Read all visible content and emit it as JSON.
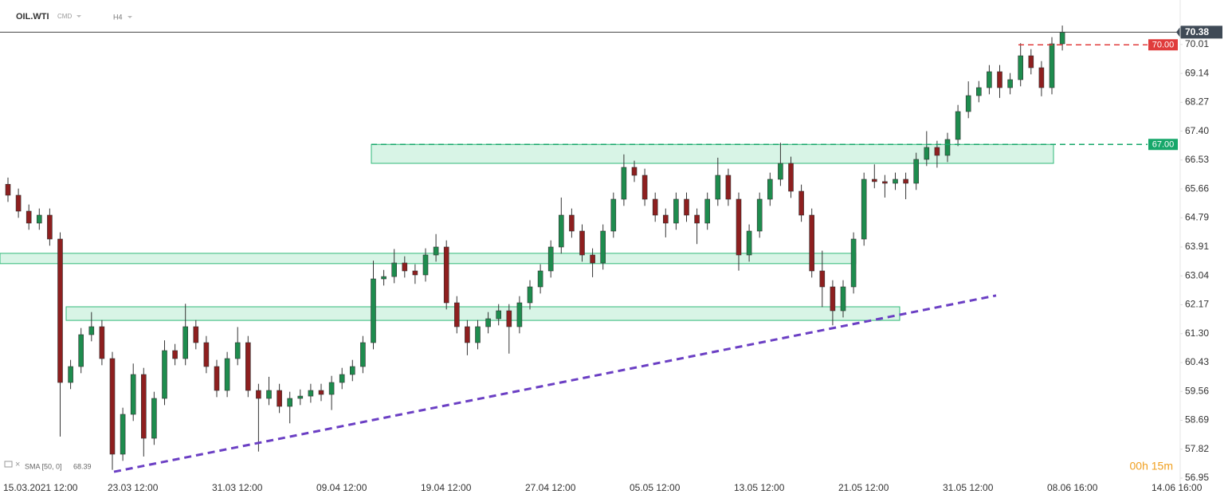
{
  "header": {
    "symbol": "OIL.WTI",
    "market": "CMD",
    "interval": "H4"
  },
  "chart_data": {
    "type": "candlestick",
    "categories": [
      "15.03.2021 12:00",
      null,
      null,
      null,
      null,
      null,
      null,
      null,
      null,
      null,
      "23.03 12:00",
      null,
      null,
      null,
      null,
      null,
      null,
      null,
      null,
      null,
      "31.03 12:00",
      null,
      null,
      null,
      null,
      null,
      null,
      null,
      null,
      null,
      "09.04 12:00",
      null,
      null,
      null,
      null,
      null,
      null,
      null,
      null,
      null,
      "19.04 12:00",
      null,
      null,
      null,
      null,
      null,
      null,
      null,
      null,
      null,
      "27.04 12:00",
      null,
      null,
      null,
      null,
      null,
      null,
      null,
      null,
      null,
      "05.05 12:00",
      null,
      null,
      null,
      null,
      null,
      null,
      null,
      null,
      null,
      "13.05 12:00",
      null,
      null,
      null,
      null,
      null,
      null,
      null,
      null,
      null,
      "21.05 12:00",
      null,
      null,
      null,
      null,
      null,
      null,
      null,
      null,
      null,
      "31.05 12:00",
      null,
      null,
      null,
      null,
      null,
      null,
      null,
      null,
      null,
      "08.06 16:00",
      null,
      null,
      null,
      null,
      null,
      null,
      null,
      null,
      null,
      "14.06 16:00",
      null
    ],
    "open": [
      65.8,
      65.47,
      64.99,
      64.63,
      64.87,
      64.15,
      59.83,
      60.31,
      61.27,
      61.51,
      60.55,
      57.67,
      58.87,
      60.07,
      58.15,
      59.35,
      60.79,
      60.55,
      61.51,
      61.03,
      60.31,
      59.59,
      60.55,
      61.03,
      59.59,
      59.35,
      59.59,
      59.11,
      59.35,
      59.42,
      59.59,
      59.47,
      59.83,
      60.07,
      60.31,
      61.03,
      62.95,
      63.02,
      63.43,
      63.19,
      63.07,
      63.67,
      63.91,
      62.23,
      61.51,
      61.03,
      61.51,
      61.75,
      61.99,
      61.51,
      62.23,
      62.71,
      63.19,
      63.91,
      64.87,
      64.39,
      63.67,
      63.43,
      64.39,
      65.35,
      66.31,
      66.07,
      65.35,
      64.87,
      64.63,
      65.35,
      64.87,
      64.63,
      65.35,
      66.07,
      65.35,
      63.67,
      64.39,
      65.35,
      65.95,
      66.43,
      65.59,
      64.87,
      63.19,
      62.71,
      61.99,
      62.71,
      64.15,
      65.95,
      65.88,
      65.83,
      65.95,
      65.83,
      66.55,
      66.91,
      66.67,
      67.15,
      67.99,
      68.47,
      68.71,
      69.19,
      68.71,
      68.95,
      69.67,
      69.31,
      68.71,
      70.03,
      null,
      null,
      null,
      null,
      null,
      null,
      null,
      null,
      null,
      null
    ],
    "high": [
      66.0,
      65.67,
      65.19,
      65.07,
      65.07,
      64.35,
      60.51,
      61.47,
      61.95,
      61.71,
      60.75,
      59.07,
      60.4,
      60.27,
      59.55,
      61.1,
      60.99,
      62.2,
      61.71,
      61.23,
      60.51,
      60.75,
      61.5,
      61.23,
      59.79,
      60.0,
      59.79,
      59.55,
      59.62,
      59.79,
      59.79,
      60.03,
      60.27,
      60.51,
      61.23,
      63.5,
      63.22,
      63.85,
      63.63,
      63.39,
      63.87,
      64.3,
      64.11,
      62.43,
      61.71,
      61.71,
      61.95,
      62.19,
      62.19,
      62.43,
      62.91,
      63.39,
      64.11,
      65.4,
      65.07,
      64.59,
      63.87,
      64.59,
      65.55,
      66.7,
      66.51,
      66.27,
      65.55,
      65.07,
      65.55,
      65.55,
      65.07,
      65.55,
      66.6,
      66.27,
      65.55,
      64.59,
      65.55,
      66.15,
      67.05,
      66.63,
      65.79,
      65.07,
      63.8,
      62.91,
      62.91,
      64.35,
      66.15,
      66.4,
      66.08,
      66.15,
      66.15,
      66.75,
      67.4,
      67.11,
      67.35,
      68.19,
      68.9,
      68.91,
      69.39,
      69.39,
      69.15,
      70.05,
      69.87,
      69.51,
      70.23,
      70.58,
      null,
      null,
      null,
      null,
      null,
      null,
      null,
      null,
      null,
      null
    ],
    "low": [
      65.27,
      64.79,
      64.43,
      64.43,
      63.95,
      58.2,
      59.63,
      60.11,
      61.07,
      60.35,
      57.2,
      57.47,
      58.67,
      57.6,
      57.95,
      59.15,
      60.35,
      60.35,
      60.83,
      60.11,
      59.39,
      59.39,
      60.35,
      59.39,
      57.75,
      59.15,
      58.91,
      58.6,
      59.15,
      59.22,
      59.27,
      59.0,
      59.63,
      59.87,
      60.11,
      60.83,
      62.75,
      62.82,
      62.99,
      62.8,
      62.87,
      63.47,
      62.03,
      61.31,
      60.65,
      60.83,
      61.31,
      61.55,
      60.7,
      61.31,
      62.03,
      62.51,
      62.99,
      63.71,
      64.19,
      63.47,
      63.0,
      63.23,
      64.19,
      65.15,
      65.87,
      65.15,
      64.67,
      64.2,
      64.43,
      64.67,
      64.0,
      64.43,
      65.15,
      65.15,
      63.2,
      63.47,
      64.19,
      65.15,
      65.75,
      65.39,
      64.67,
      62.99,
      62.1,
      61.55,
      61.79,
      62.51,
      63.95,
      65.68,
      65.4,
      65.63,
      65.35,
      65.63,
      66.35,
      66.3,
      66.47,
      66.95,
      67.79,
      68.27,
      68.51,
      68.4,
      68.51,
      68.75,
      69.11,
      68.45,
      68.51,
      69.83,
      null,
      null,
      null,
      null,
      null,
      null,
      null,
      null,
      null,
      null
    ],
    "close": [
      65.47,
      64.99,
      64.63,
      64.87,
      64.15,
      59.83,
      60.31,
      61.27,
      61.51,
      60.55,
      57.67,
      58.87,
      60.07,
      58.15,
      59.35,
      60.79,
      60.55,
      61.51,
      61.03,
      60.31,
      59.59,
      60.55,
      61.03,
      59.59,
      59.35,
      59.59,
      59.11,
      59.35,
      59.42,
      59.59,
      59.47,
      59.83,
      60.07,
      60.31,
      61.03,
      62.95,
      63.02,
      63.43,
      63.19,
      63.07,
      63.67,
      63.91,
      62.23,
      61.51,
      61.03,
      61.51,
      61.75,
      61.99,
      61.51,
      62.23,
      62.71,
      63.19,
      63.91,
      64.87,
      64.39,
      63.67,
      63.43,
      64.39,
      65.35,
      66.31,
      66.07,
      65.35,
      64.87,
      64.63,
      65.35,
      64.87,
      64.63,
      65.35,
      66.07,
      65.35,
      63.67,
      64.39,
      65.35,
      65.95,
      66.43,
      65.59,
      64.87,
      63.19,
      62.71,
      61.99,
      62.71,
      64.15,
      65.95,
      65.88,
      65.83,
      65.95,
      65.83,
      66.55,
      66.91,
      66.67,
      67.15,
      67.99,
      68.47,
      68.71,
      69.19,
      68.71,
      68.95,
      69.67,
      69.31,
      68.71,
      70.03,
      70.38,
      null,
      null,
      null,
      null,
      null,
      null,
      null,
      null,
      null,
      null
    ],
    "up_color": "#1e8c4e",
    "down_color": "#8e1f1f",
    "ylim": [
      56.71,
      71.35
    ],
    "yticks": [
      70.01,
      69.14,
      68.27,
      {
        "value": 67.4,
        "label": "67.40"
      },
      66.53,
      65.66,
      64.79,
      63.91,
      63.04,
      62.17,
      {
        "value": 61.3,
        "label": "61.30"
      },
      60.43,
      59.56,
      58.69,
      57.82,
      56.95
    ],
    "grid": false,
    "last_price": 70.38,
    "levels": [
      {
        "value": 70,
        "label": "70.00",
        "color": "#e03c3c"
      },
      {
        "value": 67,
        "label": "67.00",
        "color": "#16a76a"
      }
    ],
    "zones": [
      [
        67.0,
        66.43
      ],
      [
        63.72,
        63.41
      ],
      [
        62.11,
        61.7
      ]
    ],
    "trendline": {
      "start": 57.14,
      "end": 62.45,
      "color": "#6b3fc4"
    },
    "indicator": {
      "label": "SMA [50, 0]",
      "value": 68.39
    },
    "timer": "00h 15m"
  }
}
